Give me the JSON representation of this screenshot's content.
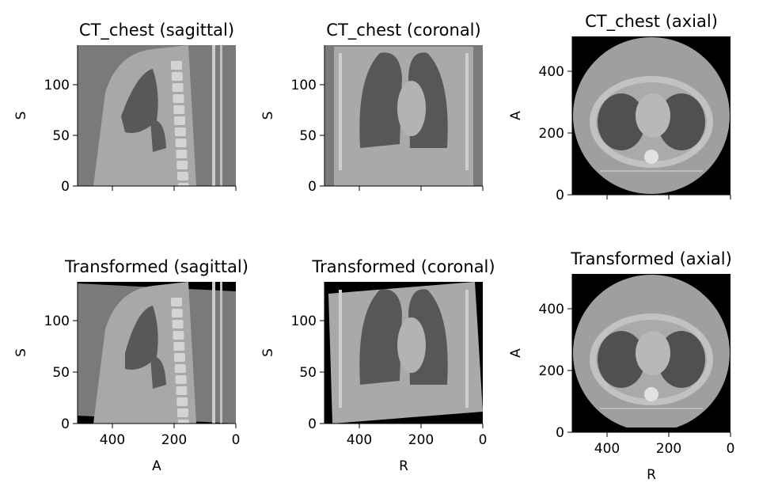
{
  "figure": {
    "panels": [
      {
        "title": "CT_chest (sagittal)",
        "kind": "sagittal",
        "variant": "orig",
        "ylabel": "S",
        "xlabel": "",
        "y_ticks": [
          "0",
          "50",
          "100"
        ],
        "x_ticks": [],
        "x_ticks_shown": false
      },
      {
        "title": "CT_chest (coronal)",
        "kind": "coronal",
        "variant": "orig",
        "ylabel": "S",
        "xlabel": "",
        "y_ticks": [
          "0",
          "50",
          "100"
        ],
        "x_ticks": [],
        "x_ticks_shown": false
      },
      {
        "title": "CT_chest (axial)",
        "kind": "axial",
        "variant": "orig",
        "ylabel": "A",
        "xlabel": "",
        "y_ticks": [
          "0",
          "200",
          "400"
        ],
        "x_ticks": [],
        "x_ticks_shown": false
      },
      {
        "title": "Transformed (sagittal)",
        "kind": "sagittal",
        "variant": "trans",
        "ylabel": "S",
        "xlabel": "A",
        "y_ticks": [
          "0",
          "50",
          "100"
        ],
        "x_ticks": [
          "400",
          "200",
          "0"
        ],
        "x_ticks_shown": true
      },
      {
        "title": "Transformed (coronal)",
        "kind": "coronal",
        "variant": "trans",
        "ylabel": "S",
        "xlabel": "R",
        "y_ticks": [
          "0",
          "50",
          "100"
        ],
        "x_ticks": [
          "400",
          "200",
          "0"
        ],
        "x_ticks_shown": true
      },
      {
        "title": "Transformed (axial)",
        "kind": "axial",
        "variant": "trans",
        "ylabel": "A",
        "xlabel": "R",
        "y_ticks": [
          "0",
          "200",
          "400"
        ],
        "x_ticks": [
          "400",
          "200",
          "0"
        ],
        "x_ticks_shown": true
      }
    ]
  }
}
